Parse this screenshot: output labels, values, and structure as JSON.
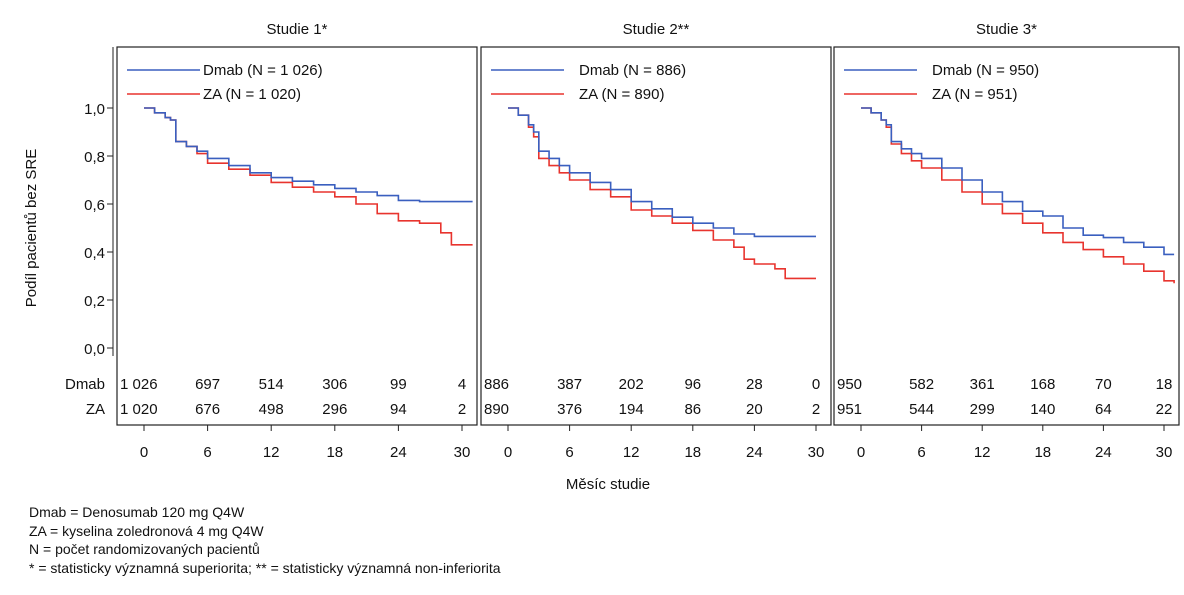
{
  "chart_data": {
    "type": "line",
    "ylabel": "Podíl pacientů bez SRE",
    "xlabel": "Měsíc studie",
    "ylim": [
      0.0,
      1.0
    ],
    "yticks": [
      "0,0",
      "0,2",
      "0,4",
      "0,6",
      "0,8",
      "1,0"
    ],
    "xlim": [
      0,
      31
    ],
    "xticks": [
      0,
      6,
      12,
      18,
      24,
      30
    ],
    "risk_row_labels": [
      "Dmab",
      "ZA"
    ],
    "colors": {
      "Dmab": "#3a5fbf",
      "ZA": "#e8342e"
    },
    "panels": [
      {
        "title": "Studie 1*",
        "series": [
          {
            "name": "Dmab (N = 1 026)",
            "key": "Dmab",
            "x": [
              0,
              1,
              2,
              2.5,
              3,
              4,
              5,
              6,
              8,
              10,
              12,
              14,
              16,
              18,
              20,
              22,
              24,
              26,
              28,
              31
            ],
            "y": [
              1.0,
              0.98,
              0.96,
              0.95,
              0.86,
              0.84,
              0.82,
              0.79,
              0.76,
              0.73,
              0.71,
              0.695,
              0.68,
              0.665,
              0.65,
              0.635,
              0.615,
              0.61,
              0.61,
              0.61
            ]
          },
          {
            "name": "ZA (N = 1 020)",
            "key": "ZA",
            "x": [
              0,
              1,
              2,
              2.5,
              3,
              4,
              5,
              6,
              8,
              10,
              12,
              14,
              16,
              18,
              20,
              22,
              24,
              26,
              28,
              29,
              31
            ],
            "y": [
              1.0,
              0.98,
              0.96,
              0.95,
              0.86,
              0.84,
              0.81,
              0.77,
              0.745,
              0.72,
              0.69,
              0.67,
              0.65,
              0.63,
              0.6,
              0.56,
              0.53,
              0.52,
              0.48,
              0.43,
              0.43
            ]
          }
        ],
        "at_risk": {
          "Dmab": [
            "1 026",
            "697",
            "514",
            "306",
            "99",
            "4"
          ],
          "ZA": [
            "1 020",
            "676",
            "498",
            "296",
            "94",
            "2"
          ]
        }
      },
      {
        "title": "Studie 2**",
        "series": [
          {
            "name": "Dmab (N = 886)",
            "key": "Dmab",
            "x": [
              0,
              1,
              2,
              2.5,
              3,
              4,
              5,
              6,
              8,
              10,
              12,
              14,
              16,
              18,
              20,
              22,
              24,
              26,
              28,
              30
            ],
            "y": [
              1.0,
              0.97,
              0.93,
              0.9,
              0.82,
              0.79,
              0.76,
              0.73,
              0.69,
              0.66,
              0.61,
              0.58,
              0.545,
              0.52,
              0.5,
              0.475,
              0.465,
              0.465,
              0.465,
              0.465
            ]
          },
          {
            "name": "ZA (N = 890)",
            "key": "ZA",
            "x": [
              0,
              1,
              2,
              2.5,
              3,
              4,
              5,
              6,
              8,
              10,
              12,
              14,
              16,
              18,
              20,
              22,
              23,
              24,
              26,
              27,
              30
            ],
            "y": [
              1.0,
              0.97,
              0.92,
              0.88,
              0.79,
              0.76,
              0.73,
              0.7,
              0.66,
              0.63,
              0.575,
              0.55,
              0.52,
              0.49,
              0.45,
              0.42,
              0.37,
              0.35,
              0.33,
              0.29,
              0.29
            ]
          }
        ],
        "at_risk": {
          "Dmab": [
            "886",
            "387",
            "202",
            "96",
            "28",
            "0"
          ],
          "ZA": [
            "890",
            "376",
            "194",
            "86",
            "20",
            "2"
          ]
        }
      },
      {
        "title": "Studie 3*",
        "series": [
          {
            "name": "Dmab (N = 950)",
            "key": "Dmab",
            "x": [
              0,
              1,
              2,
              2.5,
              3,
              4,
              5,
              6,
              8,
              10,
              12,
              14,
              16,
              18,
              20,
              22,
              24,
              26,
              28,
              30,
              31
            ],
            "y": [
              1.0,
              0.98,
              0.95,
              0.93,
              0.86,
              0.83,
              0.81,
              0.79,
              0.75,
              0.7,
              0.65,
              0.61,
              0.57,
              0.55,
              0.5,
              0.47,
              0.46,
              0.44,
              0.42,
              0.39,
              0.39
            ]
          },
          {
            "name": "ZA (N = 951)",
            "key": "ZA",
            "x": [
              0,
              1,
              2,
              2.5,
              3,
              4,
              5,
              6,
              8,
              10,
              12,
              14,
              16,
              18,
              20,
              22,
              24,
              26,
              28,
              30,
              31
            ],
            "y": [
              1.0,
              0.98,
              0.95,
              0.92,
              0.85,
              0.81,
              0.78,
              0.75,
              0.7,
              0.65,
              0.6,
              0.56,
              0.52,
              0.48,
              0.44,
              0.41,
              0.38,
              0.35,
              0.32,
              0.28,
              0.27
            ]
          }
        ],
        "at_risk": {
          "Dmab": [
            "950",
            "582",
            "361",
            "168",
            "70",
            "18"
          ],
          "ZA": [
            "951",
            "544",
            "299",
            "140",
            "64",
            "22"
          ]
        }
      }
    ]
  },
  "footnotes": {
    "line1": "Dmab = Denosumab 120 mg Q4W",
    "line2": "ZA = kyselina zoledronová 4 mg Q4W",
    "line3": "N = počet randomizovaných pacientů",
    "line4": "* = statisticky významná superiorita; ** = statisticky významná non-inferiorita"
  }
}
